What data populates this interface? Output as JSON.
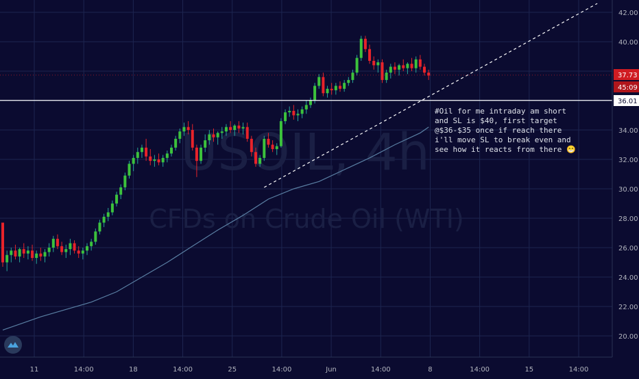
{
  "colors": {
    "background": "#0b0b30",
    "grid": "#1d2550",
    "up": "#26a69a",
    "up_body": "#3cc23c",
    "down": "#e8232a",
    "ma_line": "#5a7fa3",
    "trendline": "#ffffff",
    "hline": "#ffffff",
    "watermark": "#1a1f44",
    "axis_text": "#b2b5be"
  },
  "watermark": {
    "symbol": "USOIL, 4h",
    "description": "CFDs on Crude Oil (WTI)"
  },
  "annotation": {
    "text": "#Oil for me intraday am short\nand SL is $40, first target\n@$36-$35 once if reach there\ni'll move SL to break even and\nsee how it reacts from there 😁"
  },
  "price_labels": {
    "last_price": "37.73",
    "countdown": "45:09",
    "hline_value": "36.01"
  },
  "logo": {
    "icon": "tradingview-logo-icon"
  },
  "chart_data": {
    "type": "candlestick",
    "y_axis": {
      "ticks": [
        20,
        22,
        24,
        26,
        28,
        30,
        32,
        34,
        36,
        38,
        40,
        42
      ],
      "tick_labels": [
        "20.00",
        "22.00",
        "24.00",
        "26.00",
        "28.00",
        "30.00",
        "32.00",
        "34.00",
        "36.00",
        "38.00",
        "40.00",
        "42.00"
      ],
      "ylim": [
        18.8,
        42.7
      ]
    },
    "x_axis": {
      "tick_labels": [
        "11",
        "14:00",
        "18",
        "14:00",
        "25",
        "14:00",
        "Jun",
        "14:00",
        "8",
        "14:00",
        "15",
        "14:00"
      ]
    },
    "grid": true,
    "ohlc": [
      [
        27.7,
        27.7,
        24.7,
        25.0
      ],
      [
        25.0,
        25.8,
        24.4,
        25.5
      ],
      [
        25.5,
        26.0,
        25.0,
        25.8
      ],
      [
        25.8,
        26.2,
        25.2,
        25.4
      ],
      [
        25.4,
        26.0,
        25.0,
        25.9
      ],
      [
        25.9,
        26.3,
        25.3,
        25.6
      ],
      [
        25.6,
        26.1,
        25.2,
        25.8
      ],
      [
        25.8,
        26.2,
        25.1,
        25.3
      ],
      [
        25.3,
        25.8,
        24.9,
        25.6
      ],
      [
        25.6,
        26.0,
        25.1,
        25.4
      ],
      [
        25.4,
        25.9,
        25.0,
        25.7
      ],
      [
        25.7,
        26.3,
        25.4,
        26.0
      ],
      [
        26.0,
        26.8,
        25.7,
        26.6
      ],
      [
        26.6,
        26.9,
        25.9,
        26.1
      ],
      [
        26.1,
        26.4,
        25.5,
        25.7
      ],
      [
        25.7,
        26.2,
        25.3,
        25.9
      ],
      [
        25.9,
        26.6,
        25.5,
        26.3
      ],
      [
        26.3,
        26.5,
        25.6,
        25.8
      ],
      [
        25.8,
        26.1,
        25.3,
        25.6
      ],
      [
        25.6,
        26.0,
        25.2,
        25.8
      ],
      [
        25.8,
        26.3,
        25.5,
        26.1
      ],
      [
        26.1,
        26.6,
        25.8,
        26.4
      ],
      [
        26.4,
        27.3,
        26.2,
        27.1
      ],
      [
        27.1,
        27.9,
        26.9,
        27.7
      ],
      [
        27.7,
        28.3,
        27.4,
        28.1
      ],
      [
        28.1,
        28.7,
        27.8,
        28.4
      ],
      [
        28.4,
        29.2,
        28.2,
        29.0
      ],
      [
        29.0,
        29.8,
        28.8,
        29.6
      ],
      [
        29.6,
        30.3,
        29.3,
        30.1
      ],
      [
        30.1,
        31.1,
        29.9,
        30.9
      ],
      [
        30.9,
        31.9,
        30.7,
        31.7
      ],
      [
        31.7,
        32.3,
        31.2,
        32.1
      ],
      [
        32.1,
        32.8,
        31.7,
        32.5
      ],
      [
        32.5,
        33.0,
        32.1,
        32.8
      ],
      [
        32.8,
        33.4,
        31.9,
        32.2
      ],
      [
        32.2,
        32.7,
        31.6,
        31.9
      ],
      [
        31.9,
        32.3,
        31.5,
        32.0
      ],
      [
        32.0,
        32.4,
        31.6,
        31.8
      ],
      [
        31.8,
        32.3,
        31.5,
        32.1
      ],
      [
        32.1,
        32.6,
        31.8,
        32.4
      ],
      [
        32.4,
        33.0,
        32.2,
        32.8
      ],
      [
        32.8,
        33.6,
        32.6,
        33.4
      ],
      [
        33.4,
        34.1,
        33.1,
        33.9
      ],
      [
        33.9,
        34.5,
        33.6,
        34.2
      ],
      [
        34.2,
        34.6,
        33.7,
        34.0
      ],
      [
        34.0,
        34.4,
        32.6,
        32.8
      ],
      [
        32.8,
        33.0,
        30.8,
        31.9
      ],
      [
        31.9,
        33.0,
        31.7,
        32.8
      ],
      [
        32.8,
        33.7,
        32.5,
        33.3
      ],
      [
        33.3,
        34.0,
        33.0,
        33.7
      ],
      [
        33.7,
        34.1,
        33.2,
        33.5
      ],
      [
        33.5,
        33.9,
        33.0,
        33.8
      ],
      [
        33.8,
        34.2,
        33.4,
        33.9
      ],
      [
        33.9,
        34.4,
        33.6,
        34.2
      ],
      [
        34.2,
        34.6,
        33.8,
        34.0
      ],
      [
        34.0,
        34.4,
        33.6,
        34.3
      ],
      [
        34.3,
        34.6,
        33.8,
        34.1
      ],
      [
        34.1,
        34.5,
        33.7,
        34.2
      ],
      [
        34.2,
        34.5,
        33.2,
        33.4
      ],
      [
        33.4,
        33.6,
        32.2,
        32.5
      ],
      [
        32.5,
        32.8,
        31.5,
        31.7
      ],
      [
        31.7,
        32.3,
        31.5,
        32.1
      ],
      [
        32.1,
        33.6,
        31.9,
        33.4
      ],
      [
        33.4,
        33.8,
        32.8,
        33.0
      ],
      [
        33.0,
        33.3,
        32.5,
        32.7
      ],
      [
        32.7,
        33.1,
        32.3,
        32.9
      ],
      [
        32.9,
        34.8,
        32.8,
        34.6
      ],
      [
        34.6,
        35.4,
        34.4,
        35.2
      ],
      [
        35.2,
        35.6,
        34.9,
        35.3
      ],
      [
        35.3,
        35.7,
        34.7,
        35.0
      ],
      [
        35.0,
        35.4,
        34.6,
        35.1
      ],
      [
        35.1,
        35.6,
        34.8,
        35.4
      ],
      [
        35.4,
        36.0,
        35.1,
        35.7
      ],
      [
        35.7,
        36.2,
        35.5,
        36.0
      ],
      [
        36.0,
        37.2,
        35.8,
        37.0
      ],
      [
        37.0,
        37.8,
        36.8,
        37.6
      ],
      [
        37.6,
        37.9,
        36.3,
        36.5
      ],
      [
        36.5,
        37.0,
        36.2,
        36.8
      ],
      [
        36.8,
        37.2,
        36.4,
        36.7
      ],
      [
        36.7,
        37.2,
        36.4,
        37.0
      ],
      [
        37.0,
        37.3,
        36.6,
        36.8
      ],
      [
        36.8,
        37.4,
        36.6,
        37.2
      ],
      [
        37.2,
        37.6,
        37.0,
        37.4
      ],
      [
        37.4,
        38.1,
        37.2,
        37.9
      ],
      [
        37.9,
        39.1,
        37.7,
        38.9
      ],
      [
        38.9,
        40.4,
        38.7,
        40.2
      ],
      [
        40.2,
        40.4,
        39.3,
        39.5
      ],
      [
        39.5,
        39.8,
        38.5,
        38.7
      ],
      [
        38.7,
        39.0,
        38.1,
        38.4
      ],
      [
        38.4,
        38.8,
        37.9,
        38.6
      ],
      [
        38.6,
        38.8,
        37.2,
        37.4
      ],
      [
        37.4,
        38.1,
        37.2,
        37.9
      ],
      [
        37.9,
        38.5,
        37.5,
        38.3
      ],
      [
        38.3,
        38.6,
        37.8,
        38.1
      ],
      [
        38.1,
        38.5,
        37.7,
        38.4
      ],
      [
        38.4,
        38.8,
        38.0,
        38.2
      ],
      [
        38.2,
        38.6,
        37.8,
        38.5
      ],
      [
        38.5,
        38.9,
        38.0,
        38.2
      ],
      [
        38.2,
        39.0,
        37.9,
        38.8
      ],
      [
        38.8,
        39.1,
        38.1,
        38.3
      ],
      [
        38.3,
        38.5,
        37.7,
        37.9
      ],
      [
        37.9,
        38.1,
        37.4,
        37.7
      ]
    ],
    "moving_average": [
      [
        0,
        20.4
      ],
      [
        5,
        20.9
      ],
      [
        9,
        21.3
      ],
      [
        15,
        21.8
      ],
      [
        21,
        22.3
      ],
      [
        27,
        23.0
      ],
      [
        33,
        24.0
      ],
      [
        39,
        25.0
      ],
      [
        45,
        26.1
      ],
      [
        51,
        27.2
      ],
      [
        57,
        28.2
      ],
      [
        63,
        29.3
      ],
      [
        69,
        30.0
      ],
      [
        75,
        30.5
      ],
      [
        81,
        31.3
      ],
      [
        87,
        32.1
      ],
      [
        93,
        33.0
      ],
      [
        99,
        33.8
      ],
      [
        101,
        34.2
      ]
    ],
    "trendline": {
      "from": [
        62,
        30.1
      ],
      "to": [
        141,
        42.6
      ]
    },
    "horizontal_line": 36.01,
    "last_price": 37.73
  }
}
